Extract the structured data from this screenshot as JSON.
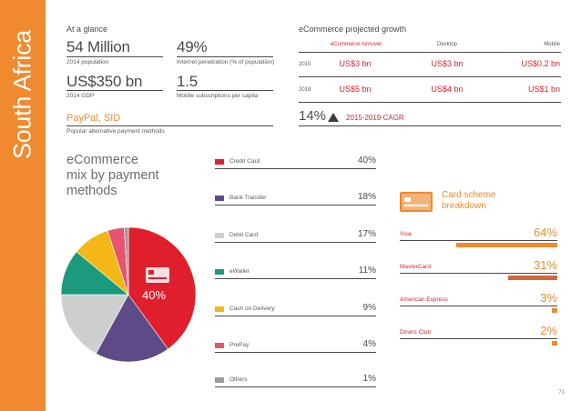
{
  "country": "South Africa",
  "glance": {
    "heading": "At a glance",
    "population_value": "54 Million",
    "population_label": "2014 population",
    "penetration_value": "49%",
    "penetration_label": "Internet penetration (% of population)",
    "gdp_value": "US$350 bn",
    "gdp_label": "2014 GDP",
    "mobile_value": "1.5",
    "mobile_label": "Mobile subscriptions per capita",
    "payment_value": "PayPal, SID",
    "payment_label": "Popular alternative payment methods"
  },
  "growth": {
    "heading": "eCommerce projected growth",
    "col_turnover": "eCommerce turnover",
    "col_desktop": "Desktop",
    "col_mobile": "Mobile",
    "rows": [
      {
        "year": "2015",
        "turnover": "US$3 bn",
        "desktop": "US$3 bn",
        "mobile": "US$0.2 bn"
      },
      {
        "year": "2019",
        "turnover": "US$5 bn",
        "desktop": "US$4 bn",
        "mobile": "US$1 bn"
      }
    ],
    "cagr_value": "14%",
    "cagr_label": "2015-2019 CAGR"
  },
  "mix": {
    "title_line1": "eCommerce",
    "title_line2": "mix by payment",
    "title_line3": "methods",
    "highlight_label": "40%"
  },
  "chart_data": {
    "type": "pie",
    "title": "eCommerce mix by payment methods",
    "categories": [
      "Credit Card",
      "Bank Transfer",
      "Debit Card",
      "eWallet",
      "Cash on Delivery",
      "PrePay",
      "Others"
    ],
    "values": [
      40,
      18,
      17,
      11,
      9,
      4,
      1
    ],
    "value_labels": [
      "40%",
      "18%",
      "17%",
      "11%",
      "9%",
      "4%",
      "1%"
    ],
    "colors": [
      "#e01f2d",
      "#5e4a87",
      "#cfcfcf",
      "#1b9a7d",
      "#f5b716",
      "#e8546f",
      "#9b9b9b"
    ]
  },
  "scheme": {
    "title_line1": "Card scheme",
    "title_line2": "breakdown",
    "items": [
      {
        "label": "Visa",
        "pct": "64%",
        "value": 64
      },
      {
        "label": "MasterCard",
        "pct": "31%",
        "value": 31
      },
      {
        "label": "American Express",
        "pct": "3%",
        "value": 3
      },
      {
        "label": "Diners Club",
        "pct": "2%",
        "value": 2
      }
    ],
    "bar_colors": [
      "#ef8a2e",
      "#d4673c",
      "#ef8a2e",
      "#ef8a2e"
    ]
  },
  "page_number": "71"
}
